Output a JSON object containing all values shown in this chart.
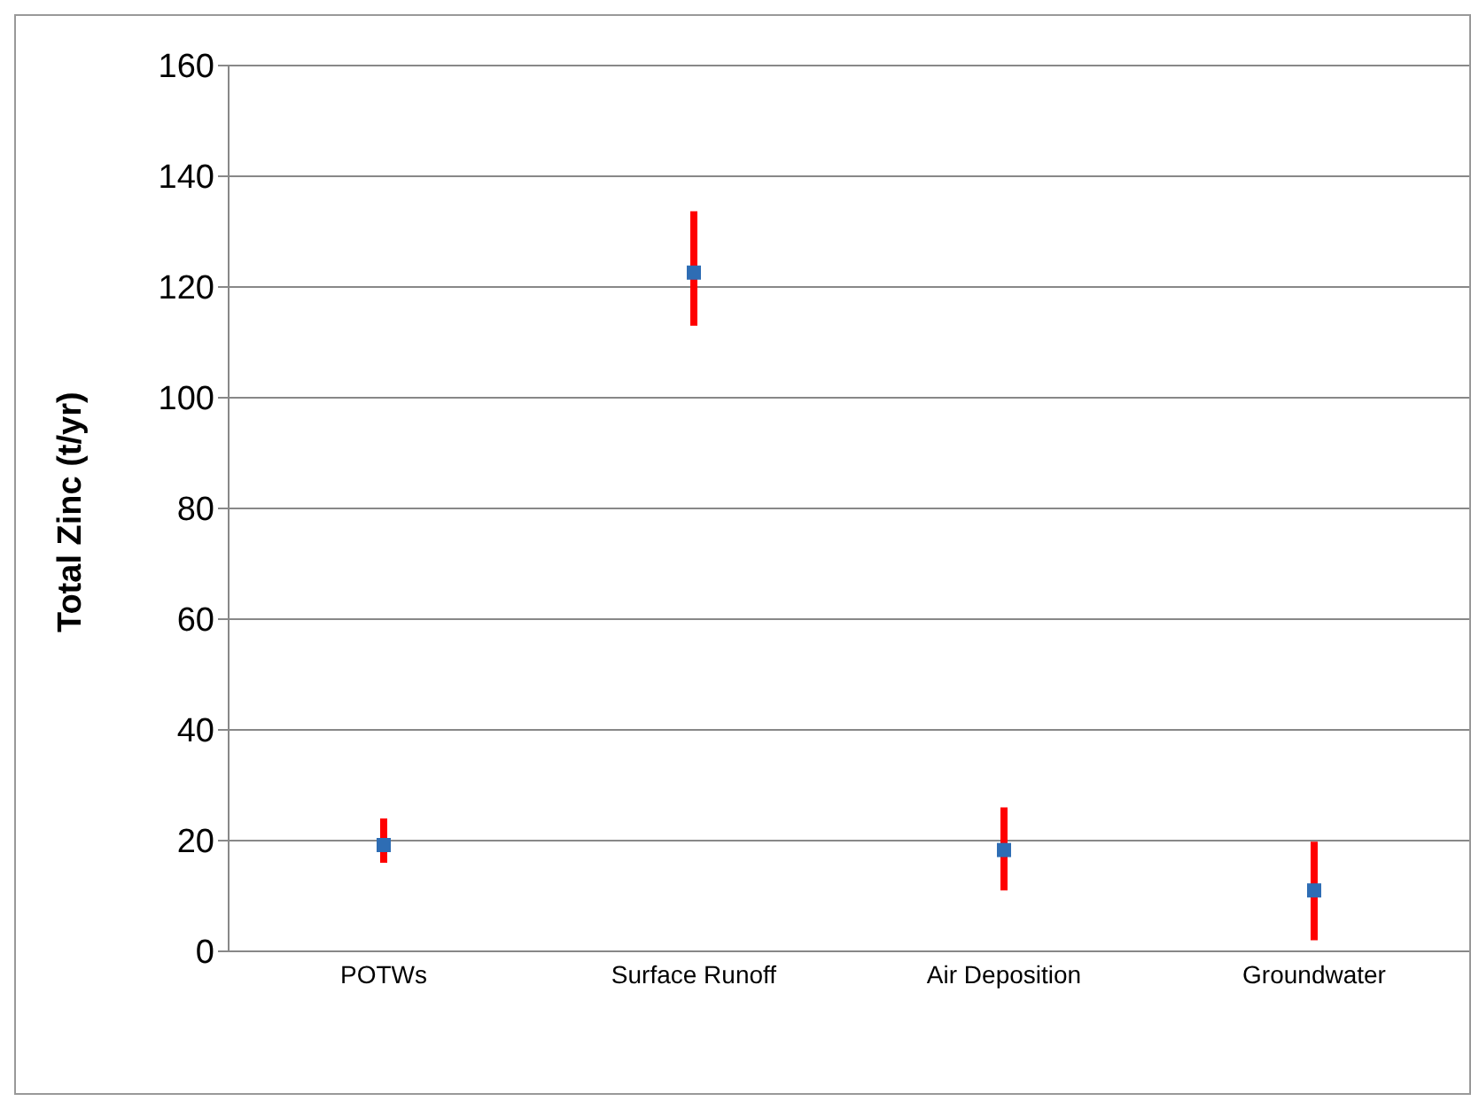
{
  "chart_data": {
    "type": "scatter",
    "ylabel": "Total Zinc (t/yr)",
    "categories": [
      "POTWs",
      "Surface Runoff",
      "Air Deposition",
      "Groundwater"
    ],
    "values": [
      19.2,
      122.6,
      18.3,
      11
    ],
    "errors": [
      [
        16,
        24
      ],
      [
        113,
        133.7
      ],
      [
        11,
        26
      ],
      [
        2,
        19.8
      ]
    ],
    "color": "#2e6db4",
    "marker": "square",
    "ylim": [
      0,
      160
    ],
    "yticks": [
      0,
      20,
      40,
      60,
      80,
      100,
      120,
      140,
      160
    ],
    "grid": "y"
  }
}
